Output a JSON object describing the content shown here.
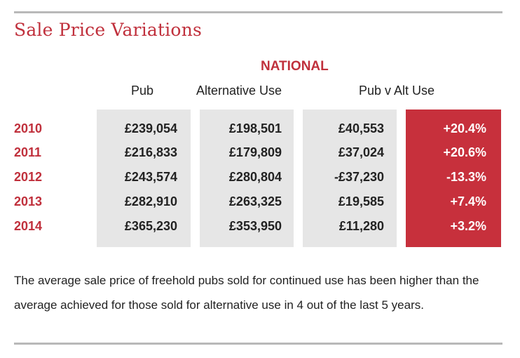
{
  "title": "Sale Price Variations",
  "region": "NATIONAL",
  "columns": [
    "Pub",
    "Alternative Use",
    "Pub v Alt Use"
  ],
  "rows": [
    {
      "year": "2010",
      "pub": "£239,054",
      "alt": "£198,501",
      "diff": "£40,553",
      "pct": "+20.4%"
    },
    {
      "year": "2011",
      "pub": "£216,833",
      "alt": "£179,809",
      "diff": "£37,024",
      "pct": "+20.6%"
    },
    {
      "year": "2012",
      "pub": "£243,574",
      "alt": "£280,804",
      "diff": "-£37,230",
      "pct": "-13.3%"
    },
    {
      "year": "2013",
      "pub": "£282,910",
      "alt": "£263,325",
      "diff": "£19,585",
      "pct": "+7.4%"
    },
    {
      "year": "2014",
      "pub": "£365,230",
      "alt": "£353,950",
      "diff": "£11,280",
      "pct": "+3.2%"
    }
  ],
  "note": "The average sale price of freehold pubs sold for continued use has been higher than the average achieved for those sold for alternative use in 4 out of the last 5 years.",
  "colors": {
    "accent": "#c0303c",
    "highlight_bg": "#c7303c",
    "cell_bg": "#e6e6e6"
  }
}
